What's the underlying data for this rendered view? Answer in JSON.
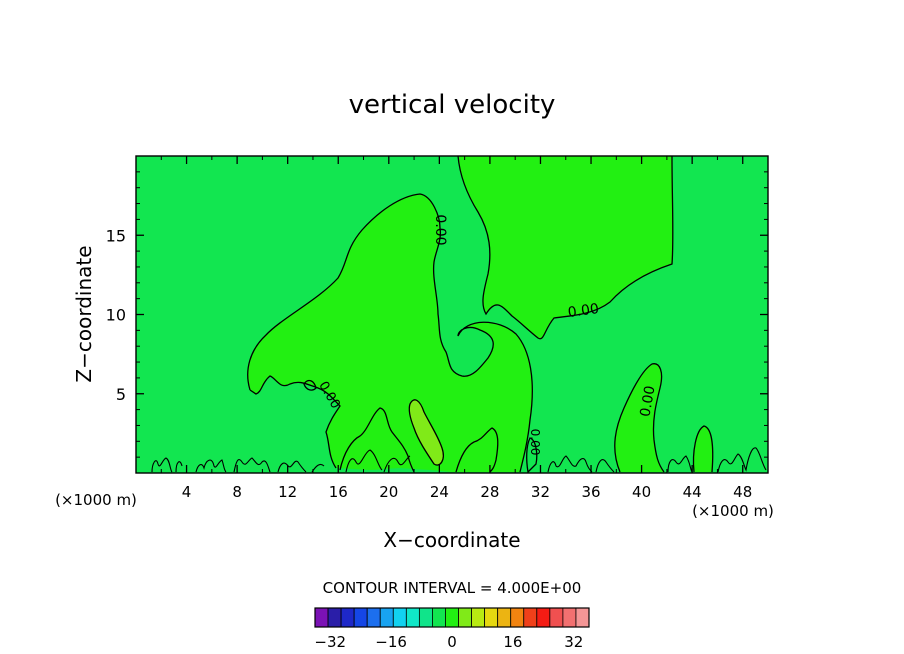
{
  "chart_data": {
    "type": "contour",
    "title": "vertical velocity",
    "xlabel": "X−coordinate",
    "ylabel": "Z−coordinate",
    "x_unit": "(×1000 m)",
    "y_unit": "(×1000 m)",
    "xlim": [
      0,
      50
    ],
    "ylim": [
      0,
      20
    ],
    "x_ticks": [
      4,
      8,
      12,
      16,
      20,
      24,
      28,
      32,
      36,
      40,
      44,
      48
    ],
    "y_ticks": [
      5,
      10,
      15
    ],
    "contour_labels": [
      "0.00",
      "0.00",
      "0.00",
      "0.00",
      "0.00"
    ],
    "contour_interval_text": "CONTOUR INTERVAL = 4.000E+00",
    "colorbar": {
      "range": [
        -36,
        36
      ],
      "step": 4,
      "tick_values": [
        -32,
        -16,
        0,
        16,
        32
      ],
      "tick_labels": [
        "−32",
        "−16",
        "0",
        "16",
        "32"
      ],
      "colors": [
        "#7b12b5",
        "#2a1ea8",
        "#1e28c8",
        "#1546e6",
        "#1c6fee",
        "#18a3f0",
        "#12d2f0",
        "#10e8c8",
        "#10e48a",
        "#12e650",
        "#22f012",
        "#80ea18",
        "#b8ea12",
        "#e6d810",
        "#ecb412",
        "#f28410",
        "#f0401a",
        "#f41c14",
        "#f05050",
        "#f27070",
        "#f49696"
      ]
    },
    "field_colors": {
      "neutral": "#12e650",
      "positive_low": "#22f012",
      "positive_mid": "#80ea18"
    }
  }
}
